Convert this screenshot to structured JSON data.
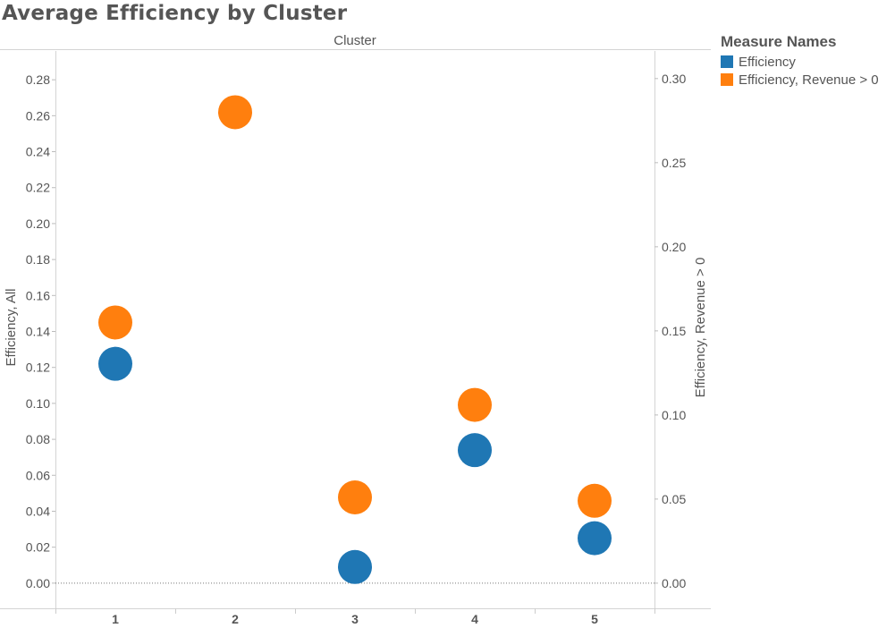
{
  "chart_data": {
    "type": "scatter",
    "title": "Average Efficiency by Cluster",
    "column_header": "Cluster",
    "categories": [
      "1",
      "2",
      "3",
      "4",
      "5"
    ],
    "y_left": {
      "label": "Efficiency, All",
      "range": [
        -0.014,
        0.296
      ],
      "ticks": [
        "0.00",
        "0.02",
        "0.04",
        "0.06",
        "0.08",
        "0.10",
        "0.12",
        "0.14",
        "0.16",
        "0.18",
        "0.20",
        "0.22",
        "0.24",
        "0.26",
        "0.28"
      ]
    },
    "y_right": {
      "label": "Efficiency, Revenue > 0",
      "range": [
        -0.01495,
        0.3164
      ],
      "ticks": [
        "0.00",
        "0.05",
        "0.10",
        "0.15",
        "0.20",
        "0.25",
        "0.30"
      ]
    },
    "legend_title": "Measure Names",
    "legend_position": "right",
    "grid": false,
    "series": [
      {
        "name": "Efficiency",
        "axis": "left",
        "color": "#1f77b4",
        "values": [
          0.122,
          null,
          0.009,
          0.074,
          0.025
        ]
      },
      {
        "name": "Efficiency, Revenue > 0",
        "axis": "right",
        "color": "#ff7f0e",
        "values": [
          0.155,
          0.28,
          0.051,
          0.106,
          0.049
        ]
      }
    ]
  }
}
